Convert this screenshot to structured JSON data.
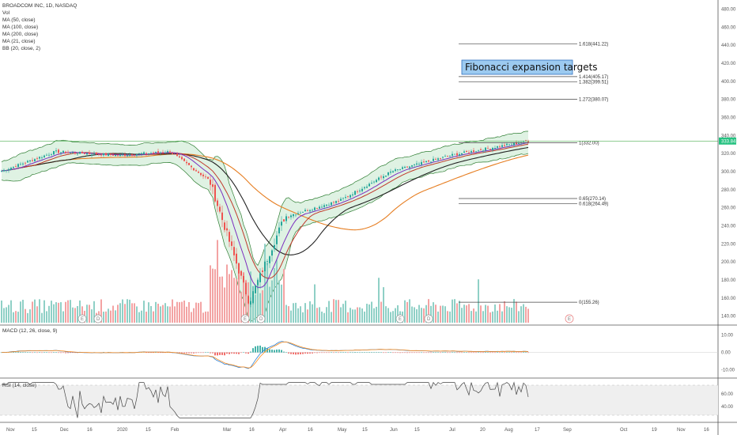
{
  "header": {
    "symbol_line": "BROADCOM INC, 1D, NASDAQ",
    "indicators": [
      "Vol",
      "MA (50, close)",
      "MA (100, close)",
      "MA (200, close)",
      "MA (21, close)",
      "BB (20, close, 2)"
    ]
  },
  "annotation": {
    "title": "Fibonacci expansion targets",
    "box_color": "#9ccaf0",
    "box_border": "#2f6fbf"
  },
  "colors": {
    "up": "#26a69a",
    "down": "#ef5350",
    "vol_up": "#8fd0c6",
    "vol_down": "#f3a3a3",
    "ma50": "#7b2cbf",
    "ma100": "#c0392b",
    "ma200": "#222222",
    "ma21": "#e67e22",
    "bb": "#2e7d32",
    "bb_fill": "#dff2e3",
    "macd": "#2a7fd4",
    "signal": "#ff8c1a",
    "rsi": "#444444",
    "price_tag": "#26c281",
    "current_line": "#4caf50"
  },
  "chart_data": [
    {
      "type": "candlestick",
      "panel": "price",
      "title": "BROADCOM INC, 1D, NASDAQ",
      "ylim": [
        130,
        490
      ],
      "y_ticks": [
        "140.00",
        "160.00",
        "180.00",
        "200.00",
        "220.00",
        "240.00",
        "260.00",
        "280.00",
        "300.00",
        "320.00",
        "340.00",
        "360.00",
        "380.00",
        "400.00",
        "420.00",
        "440.00",
        "460.00",
        "480.00"
      ],
      "x_ticks": [
        "Nov",
        "15",
        "Dec",
        "16",
        "2020",
        "15",
        "Feb",
        "Mar",
        "16",
        "Apr",
        "16",
        "May",
        "15",
        "Jun",
        "15",
        "Jul",
        "20",
        "Aug",
        "17",
        "Sep",
        "Oct",
        "19",
        "Nov",
        "16"
      ],
      "last_price_label": "333.84",
      "last_price": 333.84,
      "close_path": [
        {
          "month": "Nov",
          "close": 300
        },
        {
          "month": "Dec",
          "close": 322
        },
        {
          "month": "Jan",
          "close": 318
        },
        {
          "month": "Feb",
          "close": 322
        },
        {
          "month": "Mar-early",
          "close": 290
        },
        {
          "month": "Mar-low",
          "close": 155.26
        },
        {
          "month": "Apr",
          "close": 250
        },
        {
          "month": "May",
          "close": 268
        },
        {
          "month": "Jun",
          "close": 300
        },
        {
          "month": "Jul",
          "close": 318
        },
        {
          "month": "Aug",
          "close": 333.84
        }
      ],
      "fibonacci_levels": [
        {
          "label": "1.618(441.22)",
          "value": 441.22
        },
        {
          "label": "1.414(405.17)",
          "value": 405.17
        },
        {
          "label": "1.382(399.51)",
          "value": 399.51
        },
        {
          "label": "1.272(380.07)",
          "value": 380.07
        },
        {
          "label": "1(332.00)",
          "value": 332.0
        },
        {
          "label": "0.65(270.14)",
          "value": 270.14
        },
        {
          "label": "0.618(264.49)",
          "value": 264.49
        },
        {
          "label": "0(155.26)",
          "value": 155.26
        }
      ],
      "event_markers": [
        "E",
        "D",
        "E",
        "D",
        "E",
        "D",
        "E"
      ]
    },
    {
      "type": "bar",
      "panel": "volume",
      "series": [
        {
          "name": "Vol"
        }
      ]
    },
    {
      "type": "line",
      "panel": "macd",
      "legend": "MACD (12, 26, close, 9)",
      "y_ticks": [
        "10.00",
        "0.00",
        "-10.00"
      ],
      "ylim": [
        -12,
        13
      ]
    },
    {
      "type": "line",
      "panel": "rsi",
      "legend": "RSI (14, close)",
      "y_ticks": [
        "60.00",
        "40.00"
      ],
      "ylim": [
        20,
        80
      ],
      "band": [
        30,
        70
      ]
    }
  ]
}
